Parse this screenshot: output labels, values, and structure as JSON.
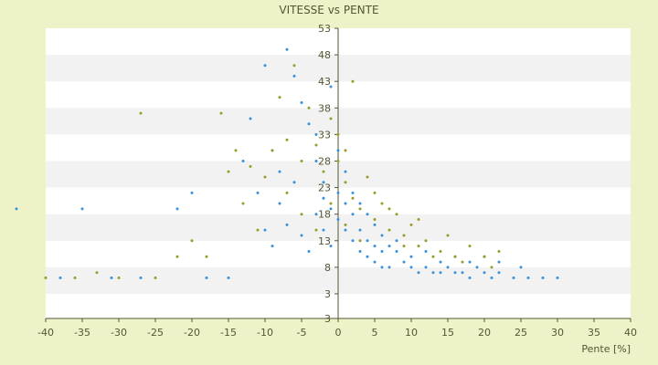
{
  "chart_data": {
    "type": "scatter",
    "title": "VITESSE vs PENTE",
    "xlabel": "Pente [%]",
    "ylabel": "",
    "xlim": [
      -40,
      40
    ],
    "ylim": [
      3,
      53
    ],
    "x_ticks": [
      "-40",
      "-35",
      "-30",
      "-25",
      "-20",
      "-15",
      "-10",
      "-5",
      "0",
      "5",
      "10",
      "15",
      "20",
      "25",
      "30",
      "35",
      "40"
    ],
    "y_ticks": [
      "53",
      "48",
      "43",
      "38",
      "33",
      "28",
      "23",
      "18",
      "13",
      "8",
      "3"
    ],
    "bottom_label": "3",
    "grid": "horizontal alternating bands",
    "legend": "none",
    "colors": {
      "background": "#eef2c9",
      "band_light": "#ffffff",
      "band_dark": "#f2f2f2",
      "series_blue": "#3a8fd8",
      "series_olive": "#9a9a2a",
      "axis": "#555533"
    },
    "series": [
      {
        "color": "#3a8fd8",
        "points": [
          [
            -44,
            19
          ],
          [
            -38,
            6
          ],
          [
            -35,
            19
          ],
          [
            -31,
            6
          ],
          [
            -27,
            6
          ],
          [
            -22,
            19
          ],
          [
            -20,
            22
          ],
          [
            -18,
            6
          ],
          [
            -15,
            6
          ],
          [
            -12,
            36
          ],
          [
            -10,
            46
          ],
          [
            -9,
            30
          ],
          [
            -8,
            26
          ],
          [
            -7,
            49
          ],
          [
            -6,
            44
          ],
          [
            -5,
            39
          ],
          [
            -4,
            35
          ],
          [
            -3,
            33
          ],
          [
            -3,
            28
          ],
          [
            -2,
            24
          ],
          [
            -2,
            21
          ],
          [
            -1,
            42
          ],
          [
            -1,
            19
          ],
          [
            0,
            30
          ],
          [
            0,
            17
          ],
          [
            1,
            26
          ],
          [
            1,
            15
          ],
          [
            2,
            22
          ],
          [
            2,
            13
          ],
          [
            3,
            20
          ],
          [
            3,
            11
          ],
          [
            4,
            18
          ],
          [
            4,
            10
          ],
          [
            5,
            16
          ],
          [
            5,
            9
          ],
          [
            6,
            14
          ],
          [
            6,
            8
          ],
          [
            7,
            12
          ],
          [
            7,
            8
          ],
          [
            8,
            11
          ],
          [
            9,
            9
          ],
          [
            10,
            8
          ],
          [
            11,
            7
          ],
          [
            12,
            8
          ],
          [
            13,
            7
          ],
          [
            14,
            7
          ],
          [
            15,
            8
          ],
          [
            16,
            7
          ],
          [
            17,
            7
          ],
          [
            18,
            6
          ],
          [
            19,
            8
          ],
          [
            20,
            7
          ],
          [
            21,
            6
          ],
          [
            22,
            7
          ],
          [
            24,
            6
          ],
          [
            26,
            6
          ],
          [
            28,
            6
          ],
          [
            30,
            6
          ],
          [
            -13,
            28
          ],
          [
            -11,
            22
          ],
          [
            -10,
            15
          ],
          [
            -9,
            12
          ],
          [
            -8,
            20
          ],
          [
            -7,
            16
          ],
          [
            -6,
            24
          ],
          [
            -5,
            14
          ],
          [
            -4,
            11
          ],
          [
            -3,
            18
          ],
          [
            -2,
            15
          ],
          [
            -1,
            12
          ],
          [
            0,
            22
          ],
          [
            1,
            20
          ],
          [
            2,
            18
          ],
          [
            3,
            15
          ],
          [
            4,
            13
          ],
          [
            5,
            12
          ],
          [
            6,
            11
          ],
          [
            8,
            13
          ],
          [
            10,
            10
          ],
          [
            12,
            11
          ],
          [
            14,
            9
          ],
          [
            16,
            10
          ],
          [
            18,
            9
          ],
          [
            20,
            10
          ],
          [
            22,
            9
          ],
          [
            25,
            8
          ]
        ]
      },
      {
        "color": "#9a9a2a",
        "points": [
          [
            -40,
            6
          ],
          [
            -36,
            6
          ],
          [
            -33,
            7
          ],
          [
            -30,
            6
          ],
          [
            -27,
            37
          ],
          [
            -25,
            6
          ],
          [
            -22,
            10
          ],
          [
            -20,
            13
          ],
          [
            -18,
            10
          ],
          [
            -16,
            37
          ],
          [
            -14,
            30
          ],
          [
            -12,
            27
          ],
          [
            -10,
            25
          ],
          [
            -8,
            40
          ],
          [
            -7,
            32
          ],
          [
            -6,
            46
          ],
          [
            -5,
            28
          ],
          [
            -4,
            38
          ],
          [
            -3,
            31
          ],
          [
            -2,
            26
          ],
          [
            -1,
            36
          ],
          [
            0,
            33
          ],
          [
            0,
            28
          ],
          [
            1,
            24
          ],
          [
            1,
            30
          ],
          [
            2,
            21
          ],
          [
            2,
            43
          ],
          [
            3,
            19
          ],
          [
            4,
            25
          ],
          [
            5,
            17
          ],
          [
            6,
            20
          ],
          [
            7,
            15
          ],
          [
            8,
            18
          ],
          [
            9,
            14
          ],
          [
            10,
            16
          ],
          [
            11,
            12
          ],
          [
            12,
            13
          ],
          [
            14,
            11
          ],
          [
            15,
            14
          ],
          [
            16,
            10
          ],
          [
            18,
            12
          ],
          [
            20,
            10
          ],
          [
            22,
            11
          ],
          [
            -15,
            26
          ],
          [
            -13,
            20
          ],
          [
            -11,
            15
          ],
          [
            -9,
            30
          ],
          [
            -7,
            22
          ],
          [
            -5,
            18
          ],
          [
            -3,
            15
          ],
          [
            -1,
            20
          ],
          [
            1,
            16
          ],
          [
            3,
            13
          ],
          [
            5,
            22
          ],
          [
            7,
            19
          ],
          [
            9,
            12
          ],
          [
            11,
            17
          ],
          [
            13,
            10
          ],
          [
            17,
            9
          ],
          [
            21,
            8
          ]
        ]
      }
    ]
  }
}
